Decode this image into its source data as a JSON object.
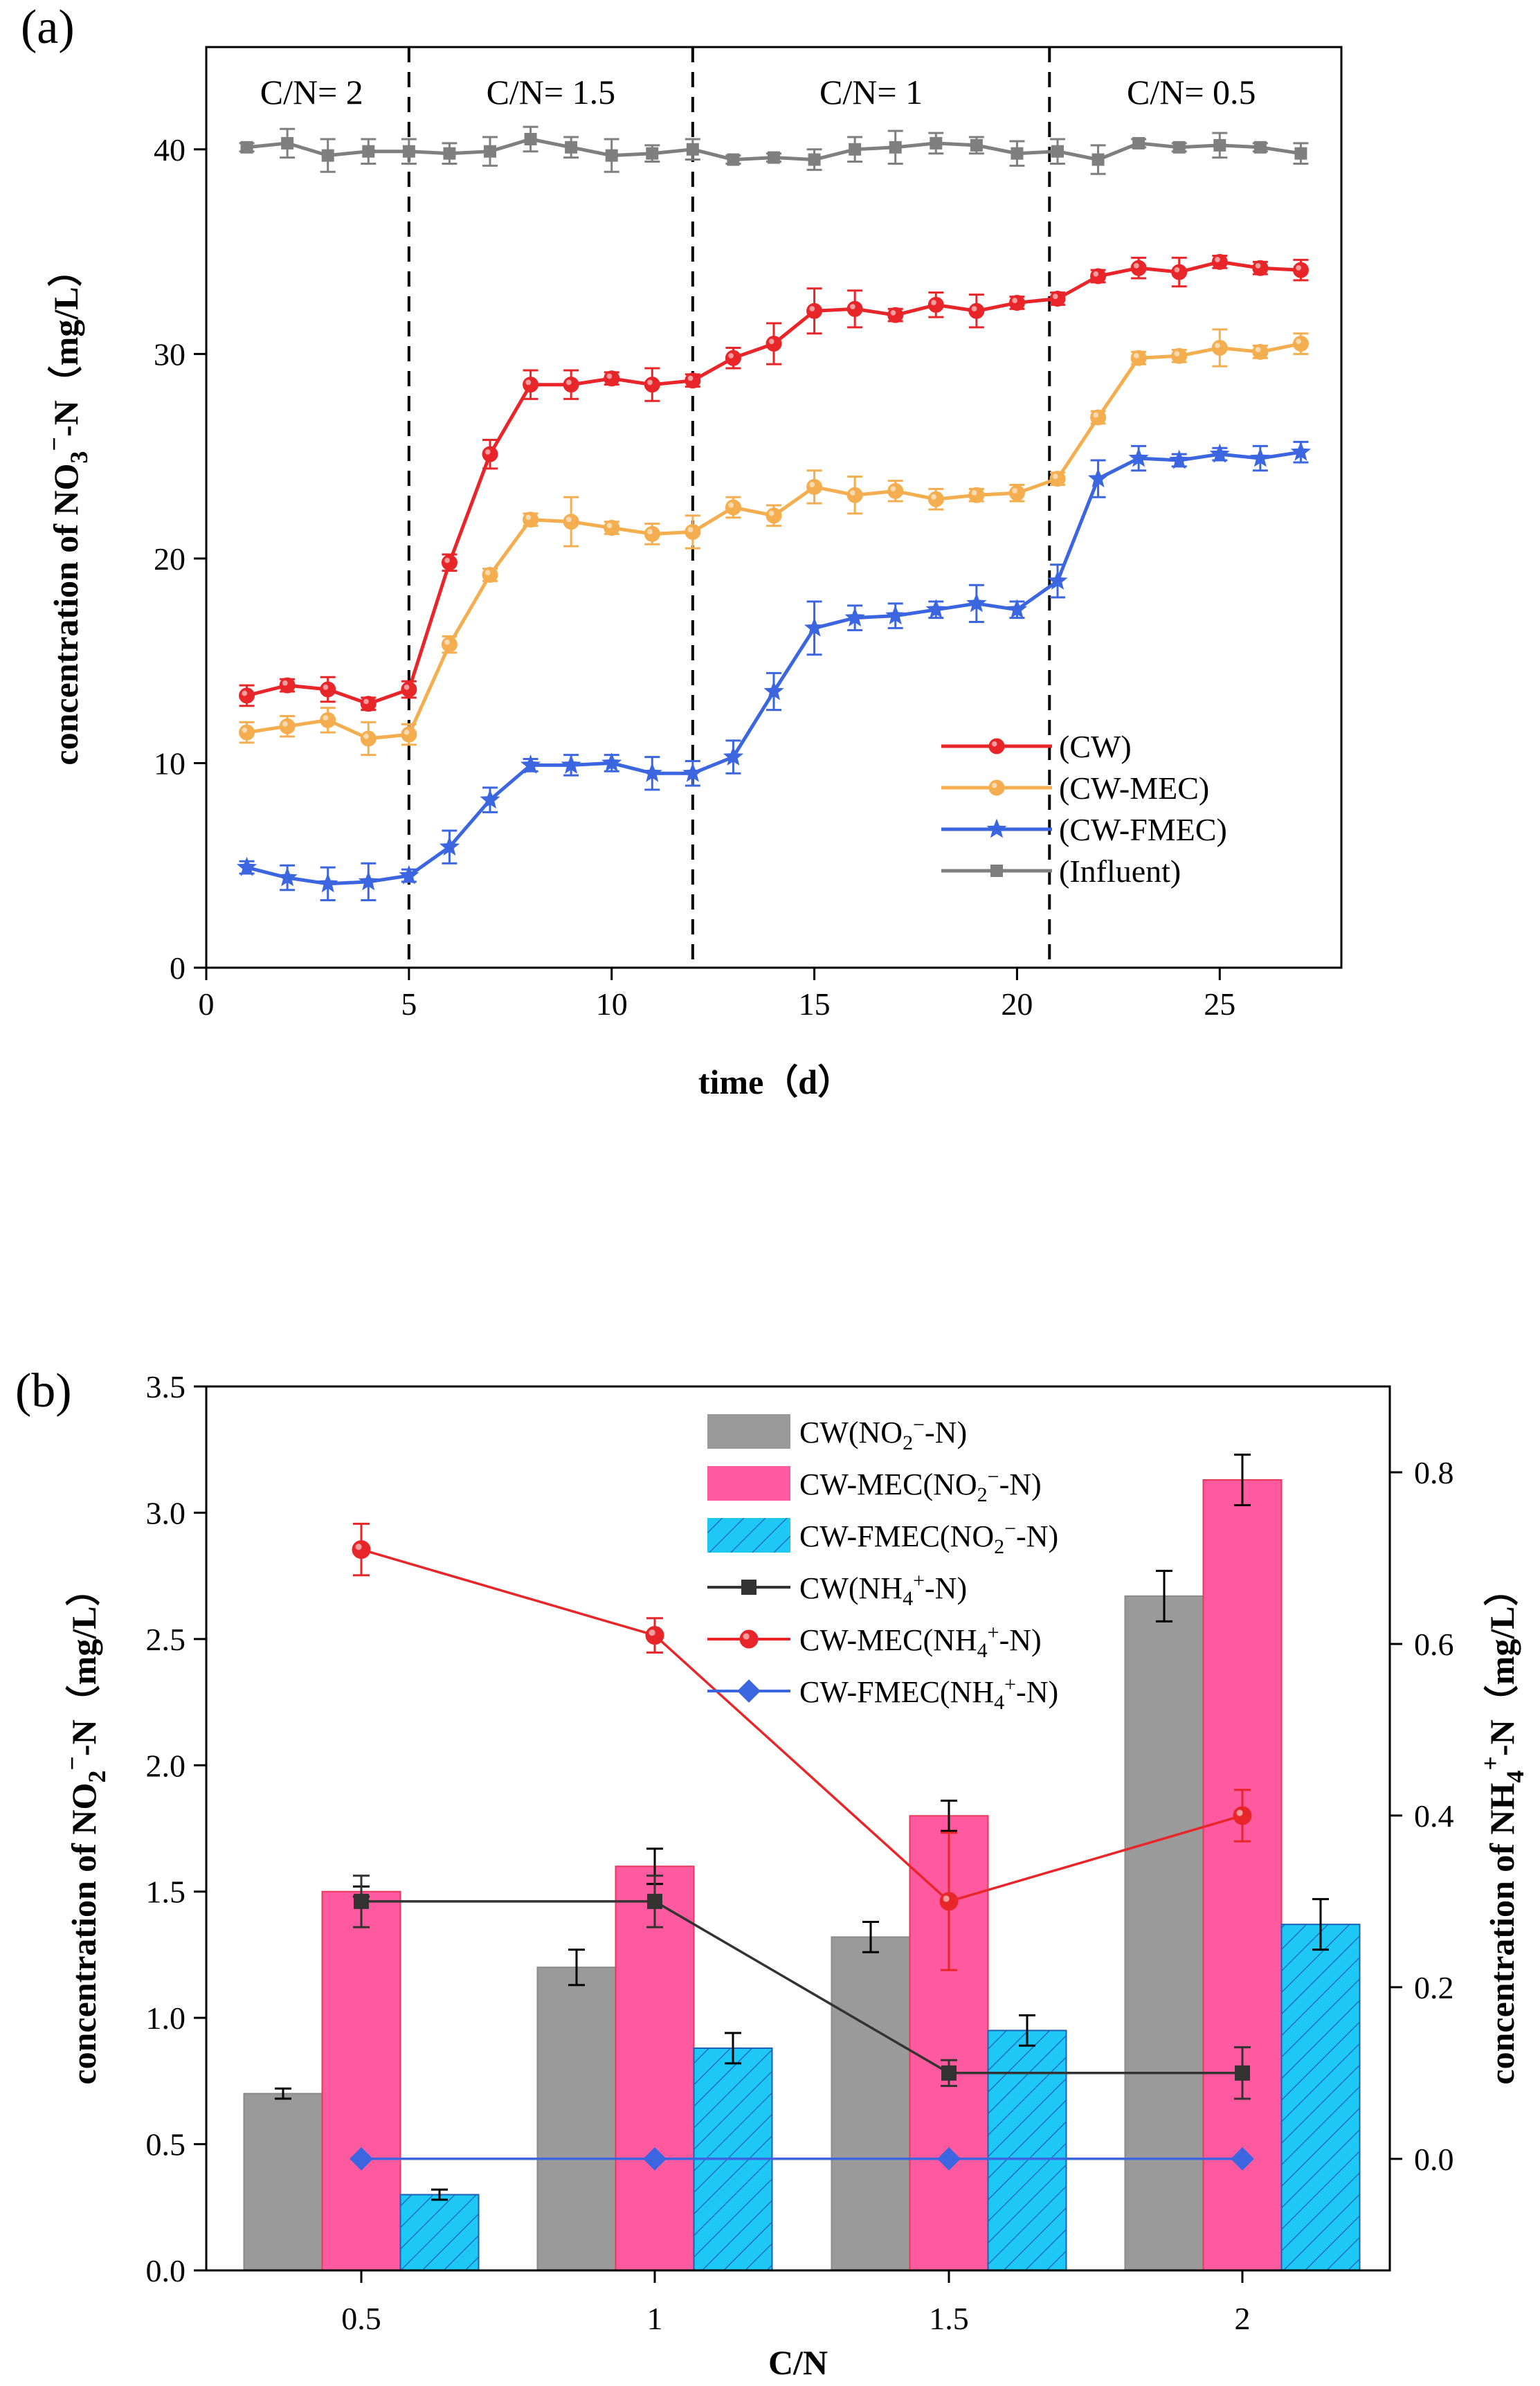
{
  "chart_data": [
    {
      "panel": "(a)",
      "type": "line",
      "xlabel": "time（d）",
      "ylabel_parts": [
        "concentration of NO",
        "3",
        "−",
        "-N（mg/L）"
      ],
      "xlim": [
        0,
        28
      ],
      "ylim": [
        0,
        45
      ],
      "xticks": [
        0,
        5,
        10,
        15,
        20,
        25
      ],
      "yticks": [
        0,
        10,
        20,
        30,
        40
      ],
      "dividers": [
        5,
        12,
        20.8
      ],
      "regions": [
        {
          "label": "C/N= 2",
          "x": 2.6
        },
        {
          "label": "C/N= 1.5",
          "x": 8.5
        },
        {
          "label": "C/N= 1",
          "x": 16.4
        },
        {
          "label": "C/N= 0.5",
          "x": 24.3
        }
      ],
      "x": [
        1,
        2,
        3,
        4,
        5,
        6,
        7,
        8,
        9,
        10,
        11,
        12,
        13,
        14,
        15,
        16,
        17,
        18,
        19,
        20,
        21,
        22,
        23,
        24,
        25,
        26,
        27
      ],
      "series": [
        {
          "name": "(CW)",
          "color": "#e8262a",
          "marker": "circle",
          "values": [
            13.3,
            13.8,
            13.6,
            12.9,
            13.6,
            19.8,
            25.1,
            28.5,
            28.5,
            28.8,
            28.5,
            28.7,
            29.8,
            30.5,
            32.1,
            32.2,
            31.9,
            32.4,
            32.1,
            32.5,
            32.7,
            33.8,
            34.2,
            34.0,
            34.5,
            34.2,
            34.1
          ],
          "errors": [
            0.5,
            0.3,
            0.6,
            0.3,
            0.4,
            0.4,
            0.7,
            0.7,
            0.7,
            0.3,
            0.8,
            0.3,
            0.5,
            1.0,
            1.1,
            0.9,
            0.3,
            0.6,
            0.8,
            0.3,
            0.3,
            0.3,
            0.5,
            0.7,
            0.3,
            0.3,
            0.5
          ]
        },
        {
          "name": "(CW-MEC)",
          "color": "#f4ae50",
          "marker": "circle",
          "values": [
            11.5,
            11.8,
            12.1,
            11.2,
            11.4,
            15.8,
            19.2,
            21.9,
            21.8,
            21.5,
            21.2,
            21.3,
            22.5,
            22.1,
            23.5,
            23.1,
            23.3,
            22.9,
            23.1,
            23.2,
            23.9,
            26.9,
            29.8,
            29.9,
            30.3,
            30.1,
            30.5
          ],
          "errors": [
            0.5,
            0.5,
            0.6,
            0.8,
            0.5,
            0.4,
            0.3,
            0.3,
            1.2,
            0.3,
            0.5,
            0.8,
            0.5,
            0.5,
            0.8,
            0.9,
            0.5,
            0.5,
            0.3,
            0.4,
            0.3,
            0.3,
            0.3,
            0.3,
            0.9,
            0.3,
            0.5
          ]
        },
        {
          "name": "(CW-FMEC)",
          "color": "#3b66e0",
          "marker": "star",
          "values": [
            4.9,
            4.4,
            4.1,
            4.2,
            4.5,
            5.9,
            8.2,
            9.9,
            9.9,
            10.0,
            9.5,
            9.5,
            10.3,
            13.5,
            16.6,
            17.1,
            17.2,
            17.5,
            17.8,
            17.5,
            18.9,
            23.9,
            24.9,
            24.8,
            25.1,
            24.9,
            25.2
          ],
          "errors": [
            0.3,
            0.6,
            0.8,
            0.9,
            0.3,
            0.8,
            0.6,
            0.3,
            0.5,
            0.4,
            0.8,
            0.6,
            0.8,
            0.9,
            1.3,
            0.6,
            0.6,
            0.4,
            0.9,
            0.4,
            0.8,
            0.9,
            0.6,
            0.3,
            0.3,
            0.6,
            0.5
          ]
        },
        {
          "name": "(Influent)",
          "color": "#7f7f7f",
          "marker": "square",
          "values": [
            40.1,
            40.3,
            39.7,
            39.9,
            39.9,
            39.8,
            39.9,
            40.5,
            40.1,
            39.7,
            39.8,
            40.0,
            39.5,
            39.6,
            39.5,
            40.0,
            40.1,
            40.3,
            40.2,
            39.8,
            39.9,
            39.5,
            40.3,
            40.1,
            40.2,
            40.1,
            39.8
          ],
          "errors": [
            0.2,
            0.7,
            0.8,
            0.6,
            0.6,
            0.5,
            0.7,
            0.6,
            0.5,
            0.8,
            0.4,
            0.5,
            0.2,
            0.2,
            0.5,
            0.6,
            0.8,
            0.5,
            0.4,
            0.6,
            0.6,
            0.7,
            0.2,
            0.2,
            0.6,
            0.2,
            0.5
          ]
        }
      ]
    },
    {
      "panel": "(b)",
      "type": "bar+line",
      "xlabel": "C/N",
      "ylabel_left_parts": [
        "concentration of NO",
        "2",
        "−",
        "-N（mg/L）"
      ],
      "ylabel_right_parts": [
        "concentration of NH",
        "4",
        "+",
        "-N（mg/L）"
      ],
      "categories": [
        "0.5",
        "1",
        "1.5",
        "2"
      ],
      "ylim_left": [
        0,
        3.5
      ],
      "ylim_right": [
        -0.13,
        0.9
      ],
      "yticks_left": [
        "0.0",
        "0.5",
        "1.0",
        "1.5",
        "2.0",
        "2.5",
        "3.0",
        "3.5"
      ],
      "yticks_right": [
        "0.0",
        "0.2",
        "0.4",
        "0.6",
        "0.8"
      ],
      "bars": [
        {
          "name": "CW(NO2−-N)",
          "legend_parts": [
            "CW(NO",
            "2",
            "−",
            "-N)"
          ],
          "color": "#9a9a9a",
          "values": [
            0.7,
            1.2,
            1.32,
            2.67
          ],
          "errors": [
            0.02,
            0.07,
            0.06,
            0.1
          ]
        },
        {
          "name": "CW-MEC(NO2−-N)",
          "legend_parts": [
            "CW-MEC(NO",
            "2",
            "−",
            "-N)"
          ],
          "color": "#ff5aa0",
          "values": [
            1.5,
            1.6,
            1.8,
            3.13
          ],
          "errors": [
            0.02,
            0.07,
            0.06,
            0.1
          ]
        },
        {
          "name": "CW-FMEC(NO2−-N)",
          "legend_parts": [
            "CW-FMEC(NO",
            "2",
            "−",
            "-N)"
          ],
          "color": "#1ec8f5",
          "values": [
            0.3,
            0.88,
            0.95,
            1.37
          ],
          "errors": [
            0.02,
            0.06,
            0.06,
            0.1
          ]
        }
      ],
      "lines": [
        {
          "name": "CW(NH4+-N)",
          "legend_parts": [
            "CW(NH",
            "4",
            "+",
            "-N)"
          ],
          "color": "#333333",
          "marker": "square",
          "values": [
            0.3,
            0.3,
            0.1,
            0.1
          ],
          "errors": [
            0.03,
            0.03,
            0.015,
            0.03
          ]
        },
        {
          "name": "CW-MEC(NH4+-N)",
          "legend_parts": [
            "CW-MEC(NH",
            "4",
            "+",
            "-N)"
          ],
          "color": "#e8262a",
          "marker": "circle",
          "values": [
            0.71,
            0.61,
            0.3,
            0.4
          ],
          "errors": [
            0.03,
            0.02,
            0.08,
            0.03
          ]
        },
        {
          "name": "CW-FMEC(NH4+-N)",
          "legend_parts": [
            "CW-FMEC(NH",
            "4",
            "+",
            "-N)"
          ],
          "color": "#3b66e0",
          "marker": "diamond",
          "values": [
            0.0,
            0.0,
            0.0,
            0.0
          ],
          "errors": [
            0,
            0,
            0,
            0
          ]
        }
      ]
    }
  ]
}
